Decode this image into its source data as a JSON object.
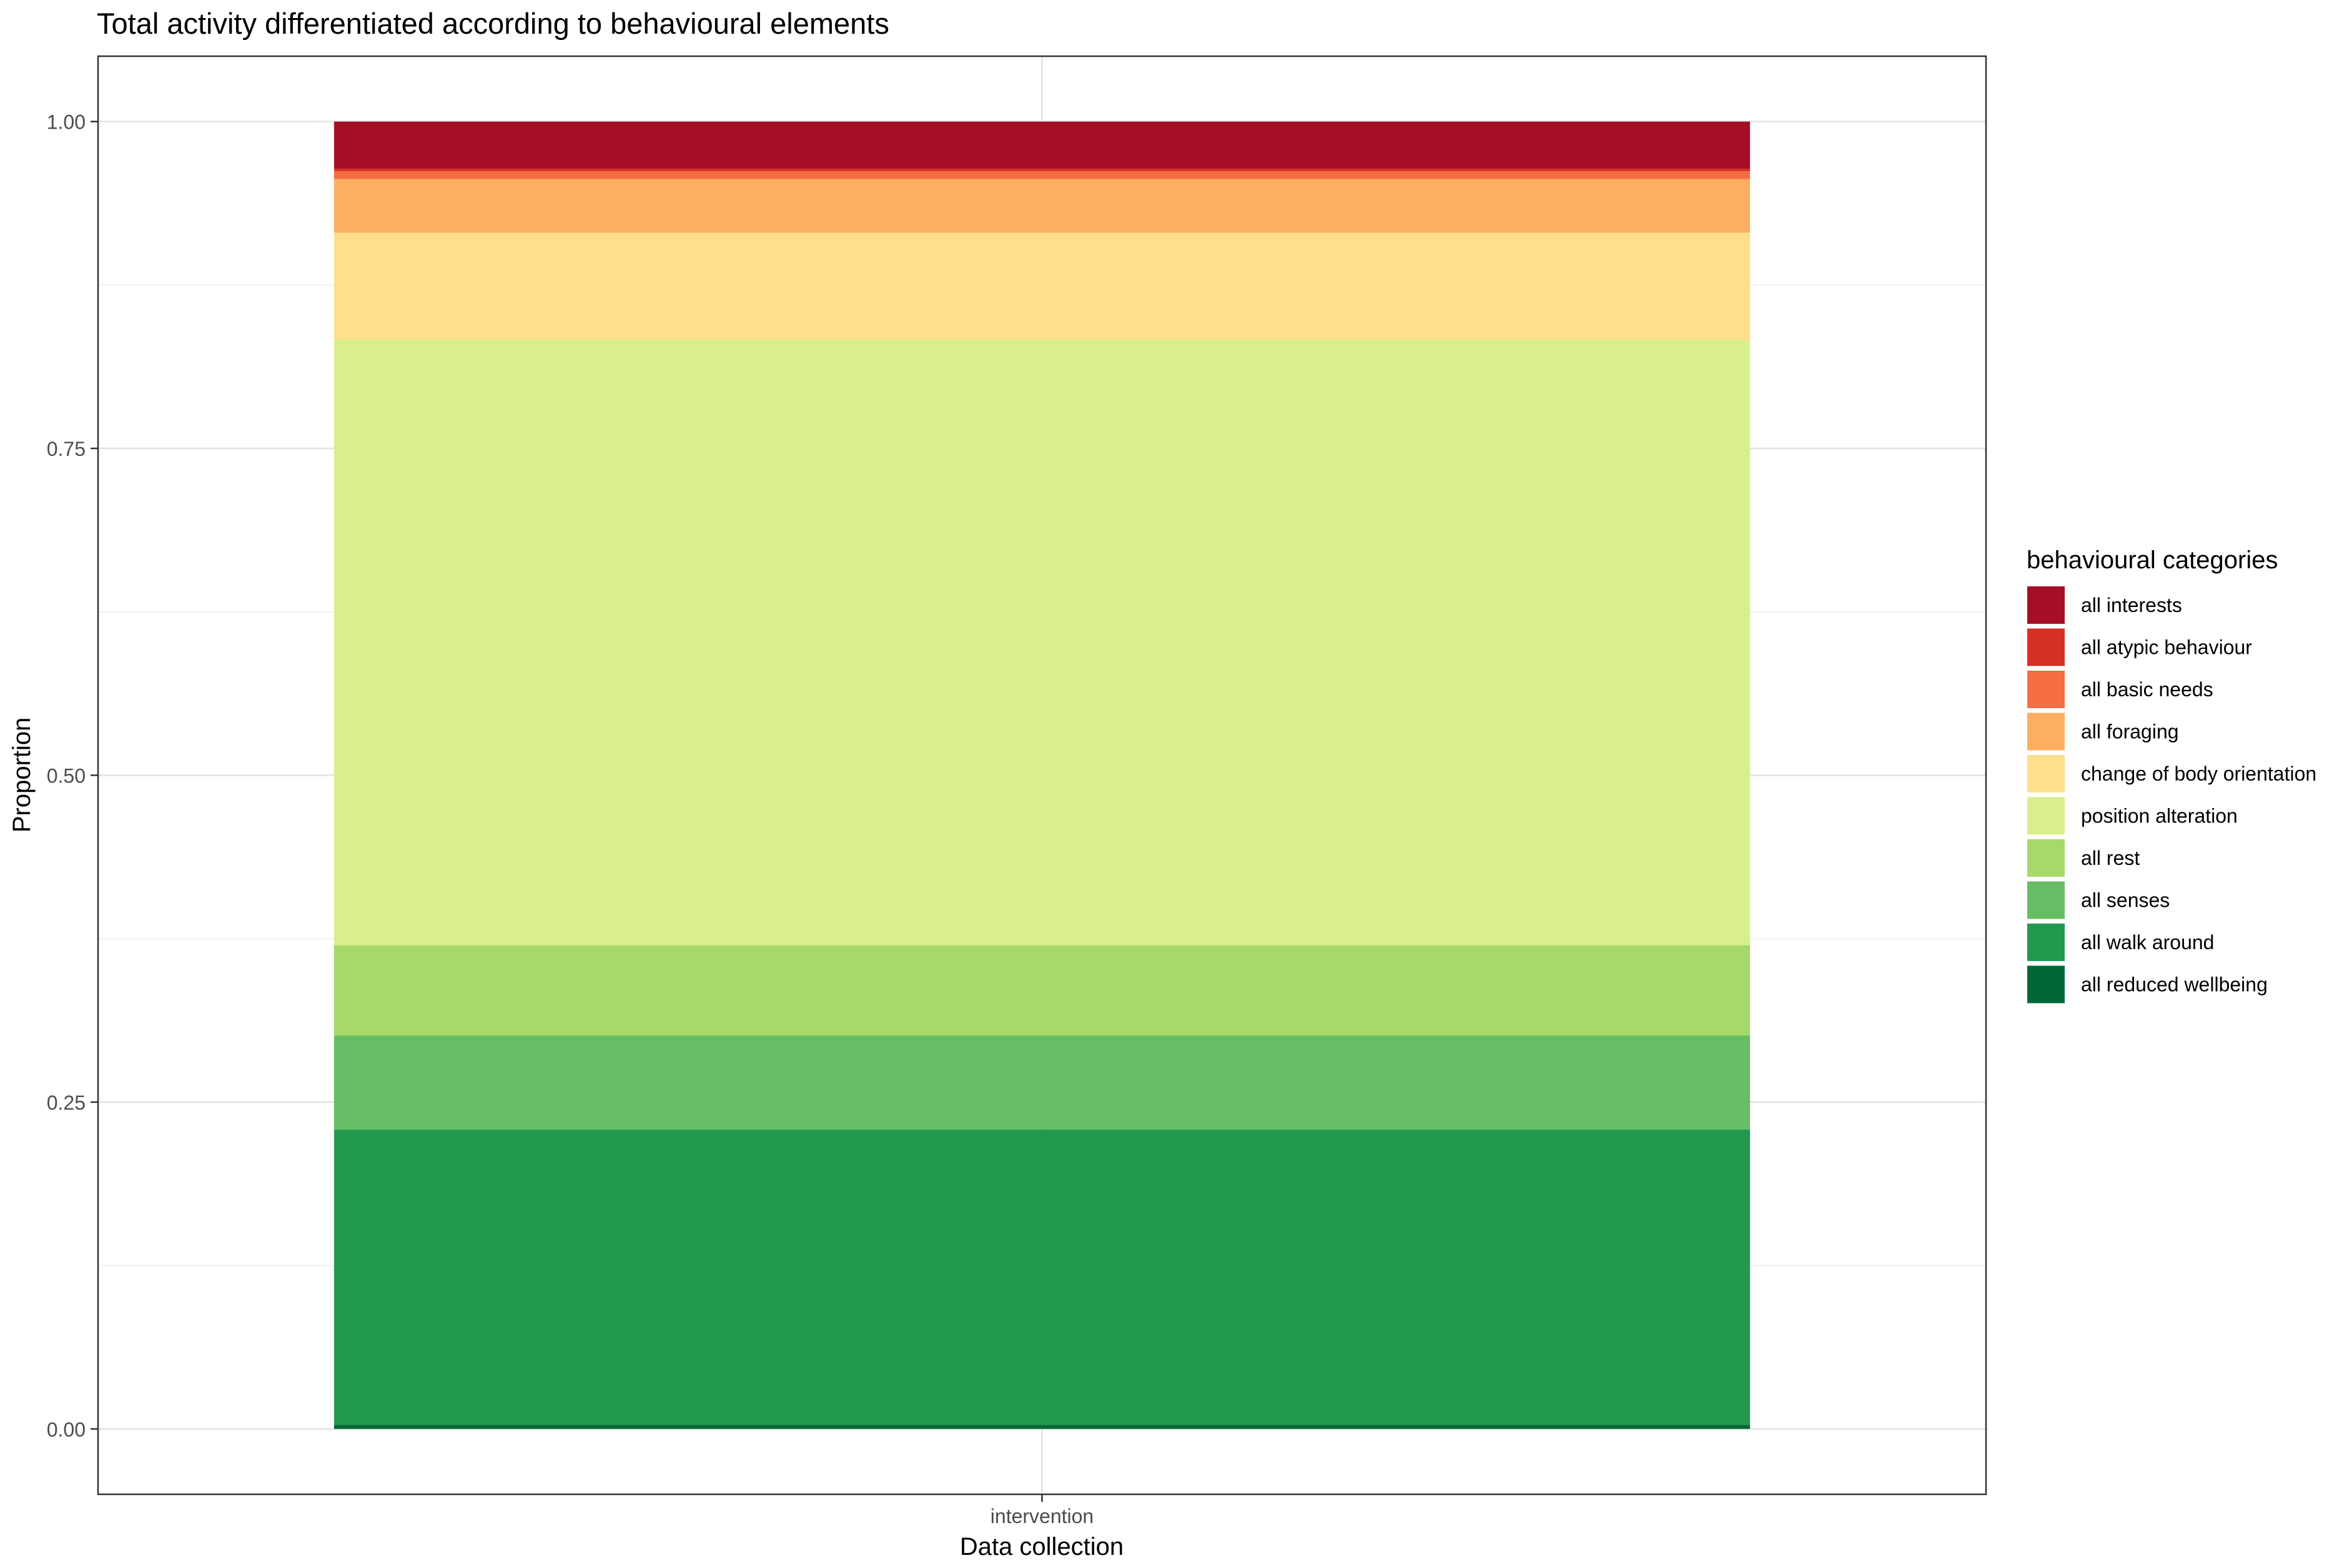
{
  "chart_data": {
    "type": "bar",
    "stacked": true,
    "title": "Total activity differentiated according to behavioural elements",
    "xlabel": "Data collection",
    "ylabel": "Proportion",
    "categories": [
      "intervention"
    ],
    "ylim": [
      -0.05,
      1.05
    ],
    "y_ticks": [
      0.0,
      0.25,
      0.5,
      0.75,
      1.0
    ],
    "y_tick_labels": [
      "0.00",
      "0.25",
      "0.50",
      "0.75",
      "1.00"
    ],
    "grid": true,
    "legend_position": "right",
    "legend_title": "behavioural categories",
    "series": [
      {
        "name": "all interests",
        "color": "#a50f26",
        "values": [
          0.036
        ]
      },
      {
        "name": "all atypic behaviour",
        "color": "#d73027",
        "values": [
          0.002
        ]
      },
      {
        "name": "all basic needs",
        "color": "#f46d43",
        "values": [
          0.006
        ]
      },
      {
        "name": "all foraging",
        "color": "#fdae61",
        "values": [
          0.041
        ]
      },
      {
        "name": "change of body orientation",
        "color": "#fee08b",
        "values": [
          0.082
        ]
      },
      {
        "name": "position alteration",
        "color": "#d9ef8b",
        "values": [
          0.463
        ]
      },
      {
        "name": "all rest",
        "color": "#a6d96a",
        "values": [
          0.069
        ]
      },
      {
        "name": "all senses",
        "color": "#66bd63",
        "values": [
          0.072
        ]
      },
      {
        "name": "all walk around",
        "color": "#22994f",
        "values": [
          0.226
        ]
      },
      {
        "name": "all reduced wellbeing",
        "color": "#006837",
        "values": [
          0.003
        ]
      }
    ]
  }
}
